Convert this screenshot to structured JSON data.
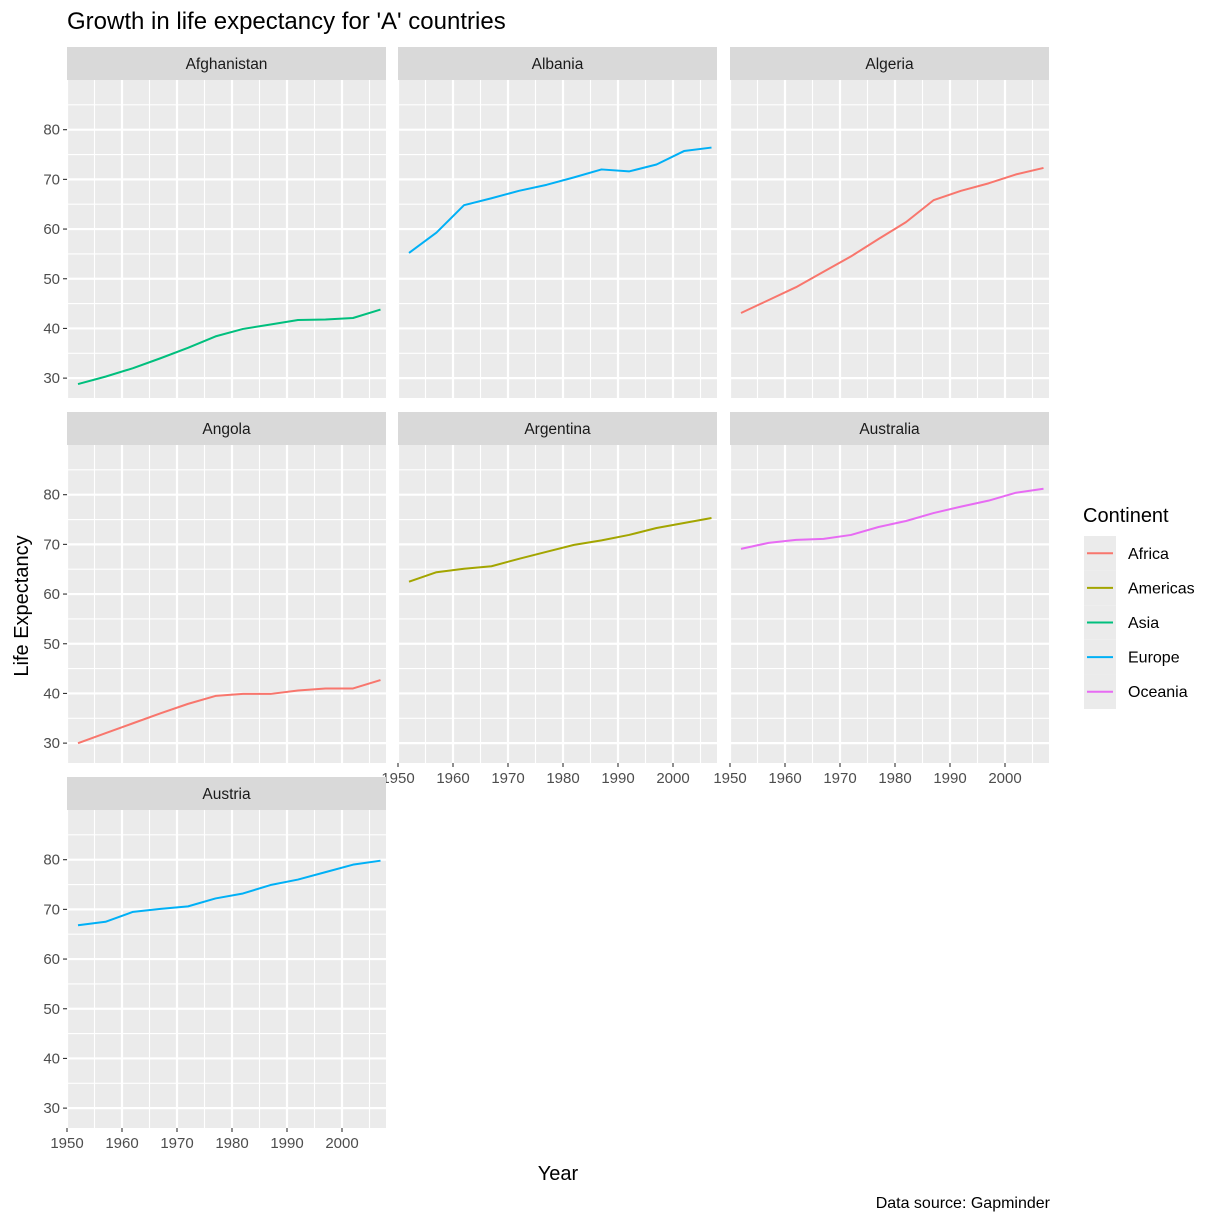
{
  "chart_data": {
    "type": "line",
    "facet_layout": "wrap",
    "title": "Growth in life expectancy for 'A' countries",
    "xlabel": "Year",
    "ylabel": "Life Expectancy",
    "caption": "Data source: Gapminder",
    "xlim": [
      1950,
      2008
    ],
    "ylim": [
      26,
      90
    ],
    "x_ticks": [
      1950,
      1960,
      1970,
      1980,
      1990,
      2000
    ],
    "y_ticks": [
      30,
      40,
      50,
      60,
      70,
      80
    ],
    "grid": true,
    "legend": {
      "title": "Continent",
      "position": "right",
      "entries": [
        {
          "name": "Africa",
          "color": "#F8766D"
        },
        {
          "name": "Americas",
          "color": "#A3A500"
        },
        {
          "name": "Asia",
          "color": "#00BF7D"
        },
        {
          "name": "Europe",
          "color": "#00B0F6"
        },
        {
          "name": "Oceania",
          "color": "#E76BF3"
        }
      ]
    },
    "x": [
      1952,
      1957,
      1962,
      1967,
      1972,
      1977,
      1982,
      1987,
      1992,
      1997,
      2002,
      2007
    ],
    "facets": [
      {
        "name": "Afghanistan",
        "continent": "Asia",
        "values": [
          28.8,
          30.3,
          32.0,
          34.0,
          36.1,
          38.4,
          39.9,
          40.8,
          41.7,
          41.8,
          42.1,
          43.8
        ]
      },
      {
        "name": "Albania",
        "continent": "Europe",
        "values": [
          55.2,
          59.3,
          64.8,
          66.2,
          67.7,
          68.9,
          70.4,
          72.0,
          71.6,
          73.0,
          75.7,
          76.4
        ]
      },
      {
        "name": "Algeria",
        "continent": "Africa",
        "values": [
          43.1,
          45.7,
          48.3,
          51.4,
          54.5,
          58.0,
          61.4,
          65.8,
          67.7,
          69.2,
          71.0,
          72.3
        ]
      },
      {
        "name": "Angola",
        "continent": "Africa",
        "values": [
          30.0,
          32.0,
          34.0,
          36.0,
          37.9,
          39.5,
          39.9,
          39.9,
          40.6,
          41.0,
          41.0,
          42.7
        ]
      },
      {
        "name": "Argentina",
        "continent": "Americas",
        "values": [
          62.5,
          64.4,
          65.1,
          65.6,
          67.1,
          68.5,
          69.9,
          70.8,
          71.9,
          73.3,
          74.3,
          75.3
        ]
      },
      {
        "name": "Australia",
        "continent": "Oceania",
        "values": [
          69.1,
          70.3,
          70.9,
          71.1,
          71.9,
          73.5,
          74.7,
          76.3,
          77.6,
          78.8,
          80.4,
          81.2
        ]
      },
      {
        "name": "Austria",
        "continent": "Europe",
        "values": [
          66.8,
          67.5,
          69.5,
          70.1,
          70.6,
          72.2,
          73.2,
          74.9,
          76.0,
          77.5,
          79.0,
          79.8
        ]
      }
    ]
  }
}
